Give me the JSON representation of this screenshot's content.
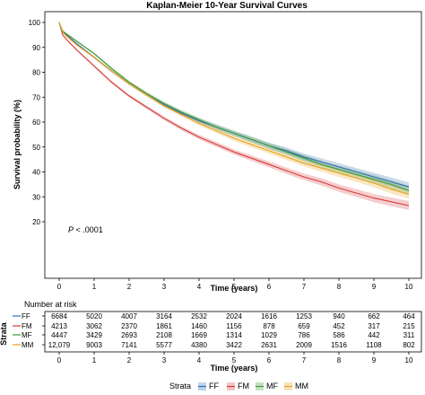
{
  "colors": {
    "FF": "#2e6db4",
    "FM": "#d93a3a",
    "MF": "#3f9c35",
    "MM": "#e8a21a",
    "axis": "#000000",
    "frame": "#000000"
  },
  "chart_data": [
    {
      "type": "line",
      "title": "Kaplan-Meier 10-Year Survival Curves",
      "xlabel": "Time (years)",
      "ylabel": "Survival probability (%)",
      "xlim": [
        0,
        10
      ],
      "ylim": [
        20,
        100
      ],
      "xticks": [
        "0",
        "1",
        "2",
        "3",
        "4",
        "5",
        "6",
        "7",
        "8",
        "9",
        "10"
      ],
      "yticks": [
        "20",
        "30",
        "40",
        "50",
        "60",
        "70",
        "80",
        "90",
        "100"
      ],
      "grid": false,
      "annotation": "P < .0001",
      "confidence_band": true,
      "x": [
        0,
        0.1,
        0.25,
        0.5,
        1,
        1.5,
        2,
        2.5,
        3,
        3.5,
        4,
        4.5,
        5,
        5.5,
        6,
        6.5,
        7,
        7.5,
        8,
        8.5,
        9,
        9.5,
        10
      ],
      "series": [
        {
          "name": "FF",
          "values": [
            100,
            96,
            94.5,
            91.5,
            86,
            80.5,
            75.5,
            71,
            67,
            63.5,
            60.5,
            58,
            55.5,
            53,
            50.5,
            48.5,
            46,
            44,
            42,
            40,
            38,
            36,
            34
          ]
        },
        {
          "name": "FM",
          "values": [
            100,
            95,
            92.5,
            89,
            82.5,
            76,
            70.5,
            66,
            61.5,
            57.5,
            54,
            51,
            48,
            45.5,
            43,
            40.5,
            38,
            36,
            33.5,
            31.5,
            29.5,
            28,
            26.5
          ]
        },
        {
          "name": "MF",
          "values": [
            100,
            96.5,
            95,
            92.5,
            87.5,
            81.5,
            76,
            71.5,
            67.5,
            64,
            61,
            58,
            55.5,
            53,
            50.5,
            48,
            45.5,
            43,
            41,
            39,
            37,
            35,
            32.5
          ]
        },
        {
          "name": "MM",
          "values": [
            100,
            96,
            94,
            91,
            86,
            80.5,
            75.5,
            71,
            66.5,
            63,
            59.5,
            56.5,
            53.5,
            51,
            48.5,
            46,
            43.5,
            41.5,
            39.5,
            37.5,
            35.5,
            33,
            31
          ]
        }
      ]
    },
    {
      "type": "table",
      "title": "Number at risk",
      "row_axis_label": "Strata",
      "times": [
        "0",
        "1",
        "2",
        "3",
        "4",
        "5",
        "6",
        "7",
        "8",
        "9",
        "10"
      ],
      "xlabel": "Time (years)",
      "rows": [
        {
          "name": "FF",
          "values": [
            "6684",
            "5020",
            "4007",
            "3164",
            "2532",
            "2024",
            "1616",
            "1253",
            "940",
            "662",
            "464"
          ]
        },
        {
          "name": "FM",
          "values": [
            "4213",
            "3062",
            "2370",
            "1861",
            "1460",
            "1156",
            "878",
            "659",
            "452",
            "317",
            "215"
          ]
        },
        {
          "name": "MF",
          "values": [
            "4447",
            "3429",
            "2693",
            "2108",
            "1669",
            "1314",
            "1029",
            "786",
            "586",
            "442",
            "311"
          ]
        },
        {
          "name": "MM",
          "values": [
            "12,079",
            "9003",
            "7141",
            "5577",
            "4380",
            "3422",
            "2631",
            "2009",
            "1516",
            "1108",
            "802"
          ]
        }
      ]
    }
  ],
  "legend": {
    "title": "Strata",
    "position": "bottom",
    "items": [
      "FF",
      "FM",
      "MF",
      "MM"
    ]
  }
}
